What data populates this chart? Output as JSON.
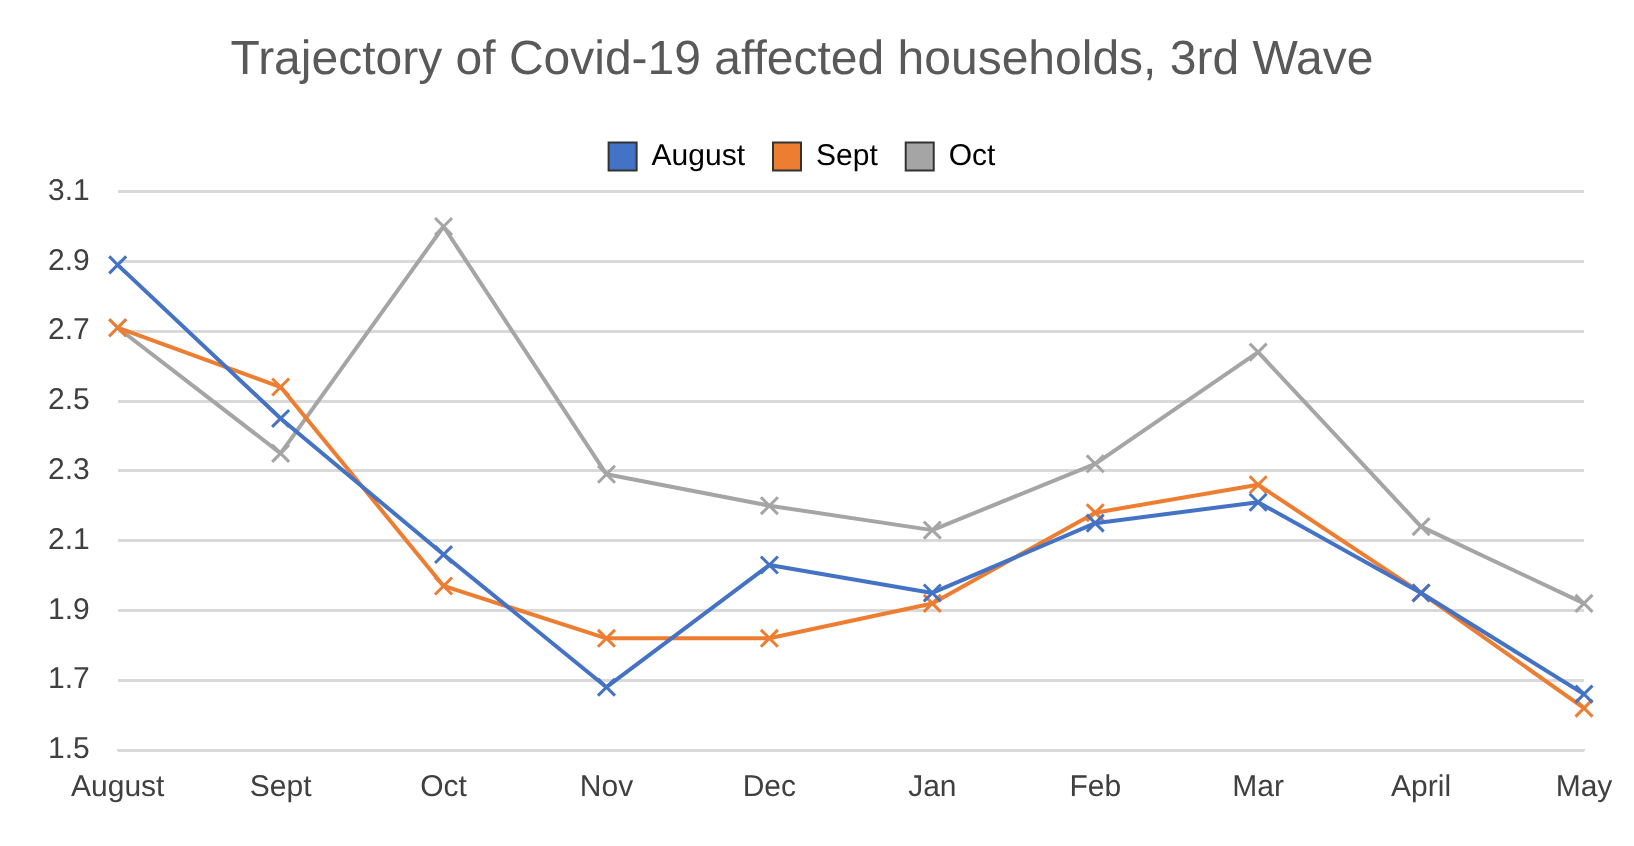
{
  "chart_data": {
    "type": "line",
    "title": "Trajectory of Covid-19 affected households, 3rd Wave",
    "categories": [
      "August",
      "Sept",
      "Oct",
      "Nov",
      "Dec",
      "Jan",
      "Feb",
      "Mar",
      "April",
      "May"
    ],
    "series": [
      {
        "name": "August",
        "color": "#4472c4",
        "values": [
          2.89,
          2.45,
          2.06,
          1.68,
          2.03,
          1.95,
          2.15,
          2.21,
          1.95,
          1.66
        ]
      },
      {
        "name": "Sept",
        "color": "#ed7d31",
        "values": [
          2.71,
          2.54,
          1.97,
          1.82,
          1.82,
          1.92,
          2.18,
          2.26,
          1.95,
          1.62
        ]
      },
      {
        "name": "Oct",
        "color": "#a5a5a5",
        "values": [
          2.71,
          2.35,
          3.0,
          2.29,
          2.2,
          2.13,
          2.32,
          2.64,
          2.14,
          1.92
        ]
      }
    ],
    "ylim": [
      1.5,
      3.1
    ],
    "yticks": [
      1.5,
      1.7,
      1.9,
      2.1,
      2.3,
      2.5,
      2.7,
      2.9,
      3.1
    ],
    "grid": "y",
    "legend": "top",
    "marker": "cross",
    "line_style": "solid"
  }
}
